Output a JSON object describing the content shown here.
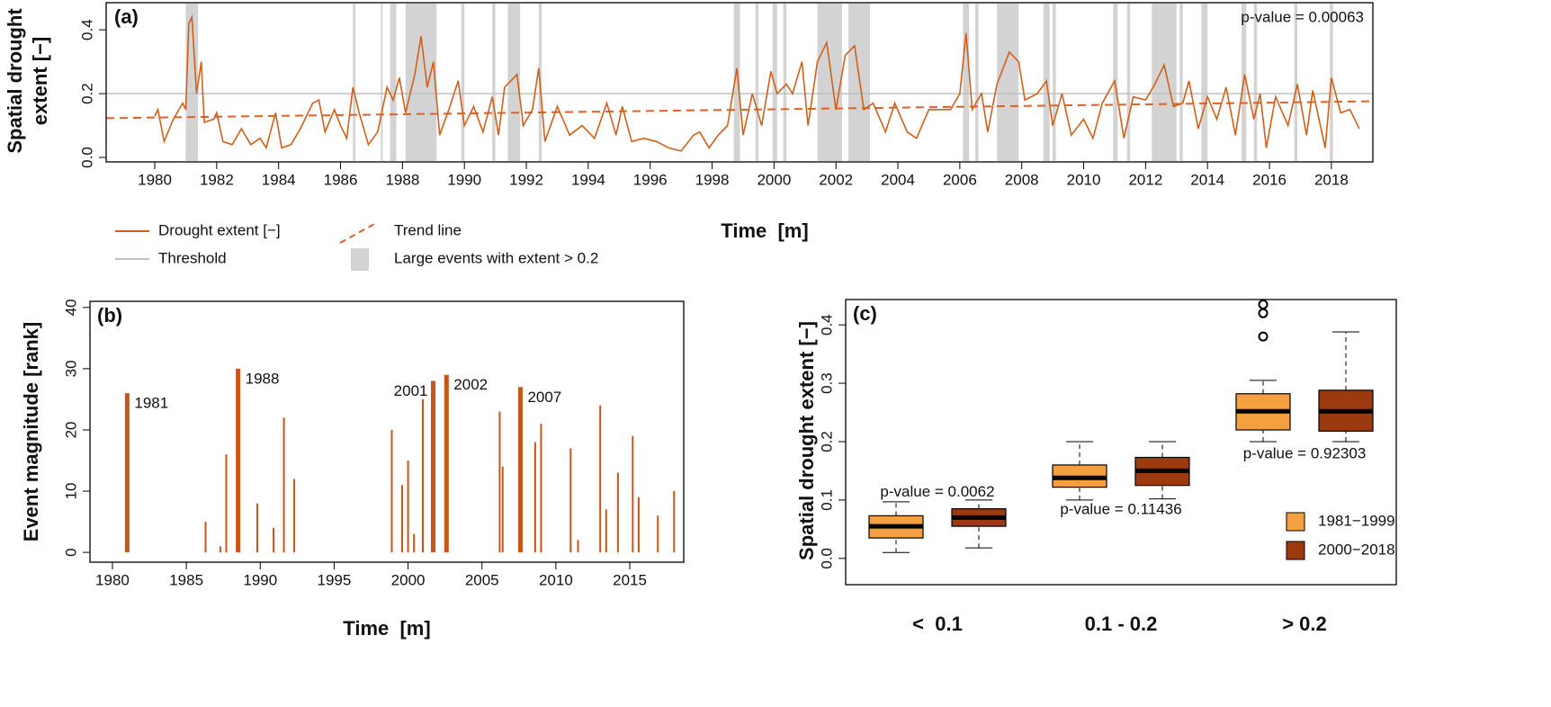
{
  "chart_data": [
    {
      "type": "line",
      "panel": "(a)",
      "ylabel": [
        "Spatial drought",
        "extent [−]"
      ],
      "xlabel": "Time  [m]",
      "annotation": "p-value = 0.00063",
      "x": [
        1980.0,
        1980.1,
        1980.3,
        1980.6,
        1980.9,
        1981.0,
        1981.1,
        1981.2,
        1981.35,
        1981.5,
        1981.6,
        1981.9,
        1982.0,
        1982.2,
        1982.5,
        1982.8,
        1983.1,
        1983.4,
        1983.6,
        1983.9,
        1984.1,
        1984.4,
        1984.7,
        1984.9,
        1985.1,
        1985.3,
        1985.5,
        1985.8,
        1986.0,
        1986.2,
        1986.4,
        1986.6,
        1986.9,
        1987.2,
        1987.5,
        1987.7,
        1987.9,
        1988.1,
        1988.4,
        1988.6,
        1988.8,
        1989.0,
        1989.2,
        1989.5,
        1989.8,
        1990.0,
        1990.3,
        1990.6,
        1990.9,
        1991.1,
        1991.3,
        1991.7,
        1991.9,
        1992.2,
        1992.4,
        1992.6,
        1993.0,
        1993.4,
        1993.8,
        1994.2,
        1994.6,
        1994.9,
        1995.1,
        1995.4,
        1995.8,
        1996.2,
        1996.6,
        1997.0,
        1997.4,
        1997.6,
        1997.9,
        1998.2,
        1998.5,
        1998.8,
        1999.0,
        1999.3,
        1999.6,
        1999.9,
        2000.1,
        2000.4,
        2000.6,
        2000.9,
        2001.1,
        2001.4,
        2001.7,
        2002.0,
        2002.3,
        2002.6,
        2002.9,
        2003.2,
        2003.6,
        2003.9,
        2004.3,
        2004.6,
        2005.0,
        2005.4,
        2005.7,
        2006.0,
        2006.2,
        2006.4,
        2006.7,
        2006.9,
        2007.2,
        2007.6,
        2007.9,
        2008.1,
        2008.5,
        2008.8,
        2009.0,
        2009.3,
        2009.6,
        2010.0,
        2010.3,
        2010.6,
        2011.0,
        2011.3,
        2011.6,
        2012.0,
        2012.3,
        2012.6,
        2012.9,
        2013.2,
        2013.4,
        2013.7,
        2014.0,
        2014.3,
        2014.6,
        2014.9,
        2015.2,
        2015.5,
        2015.7,
        2015.9,
        2016.2,
        2016.6,
        2016.9,
        2017.2,
        2017.4,
        2017.8,
        2018.0,
        2018.3,
        2018.6,
        2018.9
      ],
      "series": [
        {
          "name": "Drought extent [−]",
          "color": "#d2601a",
          "values": [
            0.13,
            0.15,
            0.05,
            0.12,
            0.17,
            0.15,
            0.42,
            0.44,
            0.2,
            0.3,
            0.11,
            0.12,
            0.14,
            0.05,
            0.04,
            0.09,
            0.04,
            0.06,
            0.03,
            0.14,
            0.03,
            0.04,
            0.09,
            0.13,
            0.17,
            0.18,
            0.08,
            0.15,
            0.1,
            0.06,
            0.22,
            0.14,
            0.04,
            0.08,
            0.22,
            0.18,
            0.25,
            0.14,
            0.26,
            0.38,
            0.22,
            0.3,
            0.07,
            0.15,
            0.24,
            0.1,
            0.16,
            0.08,
            0.19,
            0.07,
            0.22,
            0.26,
            0.1,
            0.15,
            0.28,
            0.05,
            0.16,
            0.07,
            0.1,
            0.06,
            0.17,
            0.07,
            0.16,
            0.05,
            0.06,
            0.05,
            0.03,
            0.02,
            0.07,
            0.08,
            0.03,
            0.07,
            0.1,
            0.28,
            0.07,
            0.2,
            0.1,
            0.27,
            0.2,
            0.23,
            0.2,
            0.3,
            0.1,
            0.3,
            0.36,
            0.15,
            0.32,
            0.35,
            0.15,
            0.17,
            0.08,
            0.17,
            0.08,
            0.06,
            0.15,
            0.15,
            0.15,
            0.2,
            0.39,
            0.15,
            0.2,
            0.08,
            0.23,
            0.33,
            0.3,
            0.18,
            0.2,
            0.24,
            0.1,
            0.2,
            0.07,
            0.12,
            0.06,
            0.17,
            0.24,
            0.06,
            0.19,
            0.18,
            0.23,
            0.29,
            0.16,
            0.17,
            0.24,
            0.09,
            0.19,
            0.12,
            0.22,
            0.07,
            0.26,
            0.12,
            0.2,
            0.03,
            0.19,
            0.1,
            0.23,
            0.07,
            0.21,
            0.03,
            0.25,
            0.14,
            0.15,
            0.09
          ]
        }
      ],
      "trend": {
        "name": "Trend line",
        "color": "#e0602a",
        "x": [
          1978.43,
          2019.34
        ],
        "values": [
          0.123,
          0.176
        ]
      },
      "threshold": {
        "name": "Threshold",
        "color": "#c0c0c0",
        "value": 0.2
      },
      "events": {
        "name": "Large events with extent > 0.2",
        "color": "#d3d3d3",
        "ranges": [
          [
            1981.0,
            1981.4
          ],
          [
            1986.4,
            1986.48
          ],
          [
            1987.3,
            1987.33
          ],
          [
            1987.6,
            1987.8
          ],
          [
            1988.1,
            1989.1
          ],
          [
            1989.9,
            1990.0
          ],
          [
            1990.9,
            1991.0
          ],
          [
            1991.4,
            1991.8
          ],
          [
            1992.4,
            1992.5
          ],
          [
            1998.7,
            1998.9
          ],
          [
            1999.4,
            1999.5
          ],
          [
            1999.95,
            2000.1
          ],
          [
            2000.3,
            2000.4
          ],
          [
            2001.4,
            2002.2
          ],
          [
            2002.4,
            2003.1
          ],
          [
            2006.1,
            2006.3
          ],
          [
            2006.5,
            2006.6
          ],
          [
            2007.2,
            2007.9
          ],
          [
            2008.7,
            2008.9
          ],
          [
            2009.0,
            2009.1
          ],
          [
            2010.95,
            2011.1
          ],
          [
            2011.4,
            2011.5
          ],
          [
            2012.2,
            2013.0
          ],
          [
            2013.1,
            2013.2
          ],
          [
            2013.8,
            2014.0
          ],
          [
            2015.1,
            2015.25
          ],
          [
            2015.5,
            2015.6
          ],
          [
            2016.8,
            2016.9
          ],
          [
            2017.95,
            2018.05
          ]
        ]
      },
      "xlim": [
        1978.43,
        2019.34
      ],
      "ylim": [
        -0.014,
        0.485
      ],
      "xticks": [
        1980,
        1982,
        1984,
        1986,
        1988,
        1990,
        1992,
        1994,
        1996,
        1998,
        2000,
        2002,
        2004,
        2006,
        2008,
        2010,
        2012,
        2014,
        2016,
        2018
      ],
      "yticks": [
        {
          "value": 0,
          "label": "0.0"
        },
        0.2,
        0.4
      ]
    },
    {
      "type": "bar",
      "panel": "(b)",
      "ylabel": "Event magnitude [rank]",
      "xlabel": "Time  [m]",
      "color": "#c8561a",
      "x": [
        1981.0,
        1986.3,
        1987.3,
        1987.7,
        1988.5,
        1989.8,
        1990.9,
        1991.6,
        1992.3,
        1998.9,
        1999.6,
        2000.0,
        2000.4,
        2001.0,
        2001.7,
        2002.6,
        2006.2,
        2006.4,
        2007.6,
        2008.6,
        2009.0,
        2011.0,
        2011.5,
        2013.0,
        2013.4,
        2014.2,
        2015.2,
        2015.6,
        2016.9,
        2018.0
      ],
      "values": [
        26,
        5,
        1,
        16,
        30,
        8,
        4,
        22,
        12,
        20,
        11,
        15,
        3,
        25,
        28,
        29,
        23,
        14,
        27,
        18,
        21,
        17,
        2,
        24,
        7,
        13,
        19,
        9,
        6,
        10
      ],
      "highlight": [
        true,
        false,
        false,
        false,
        true,
        false,
        false,
        false,
        false,
        false,
        false,
        false,
        false,
        false,
        true,
        true,
        false,
        false,
        true,
        false,
        false,
        false,
        false,
        false,
        false,
        false,
        false,
        false,
        false,
        false
      ],
      "labels": [
        "1981",
        null,
        null,
        null,
        "1988",
        null,
        null,
        null,
        null,
        null,
        null,
        null,
        null,
        null,
        "2001",
        "2002",
        null,
        null,
        "2007",
        null,
        null,
        null,
        null,
        null,
        null,
        null,
        null,
        null,
        null,
        null
      ],
      "xlim": [
        1978.48,
        2018.65
      ],
      "ylim": [
        -1.6,
        41.0
      ],
      "xticks": [
        1980,
        1985,
        1990,
        1995,
        2000,
        2005,
        2010,
        2015
      ],
      "yticks": [
        0,
        10,
        20,
        30,
        40
      ]
    },
    {
      "type": "box",
      "panel": "(c)",
      "ylabel": "Spatial drought extent [−]",
      "categories": [
        "<  0.1",
        "0.1 - 0.2",
        "> 0.2"
      ],
      "annotations": [
        "p-value = 0.0062",
        "p-value = 0.11436",
        "p-value = 0.92303"
      ],
      "series": [
        {
          "name": "1981−1999",
          "color": "#f5a040",
          "low": [
            0.01,
            0.1,
            0.2
          ],
          "q1": [
            0.035,
            0.122,
            0.22
          ],
          "median": [
            0.055,
            0.138,
            0.252
          ],
          "q3": [
            0.073,
            0.16,
            0.282
          ],
          "high": [
            0.097,
            0.2,
            0.305
          ],
          "outliers": [
            [],
            [],
            [
              0.38,
              0.42,
              0.435
            ]
          ]
        },
        {
          "name": "2000−2018",
          "color": "#9b3a0f",
          "low": [
            0.018,
            0.102,
            0.2
          ],
          "q1": [
            0.055,
            0.125,
            0.218
          ],
          "median": [
            0.07,
            0.15,
            0.252
          ],
          "q3": [
            0.085,
            0.173,
            0.288
          ],
          "high": [
            0.1,
            0.2,
            0.388
          ],
          "outliers": [
            [],
            [],
            []
          ]
        }
      ],
      "ylim": [
        -0.045,
        0.4434
      ],
      "yticks": [
        {
          "value": 0,
          "label": "0.0"
        },
        0.1,
        0.2,
        0.3,
        0.4
      ]
    }
  ]
}
